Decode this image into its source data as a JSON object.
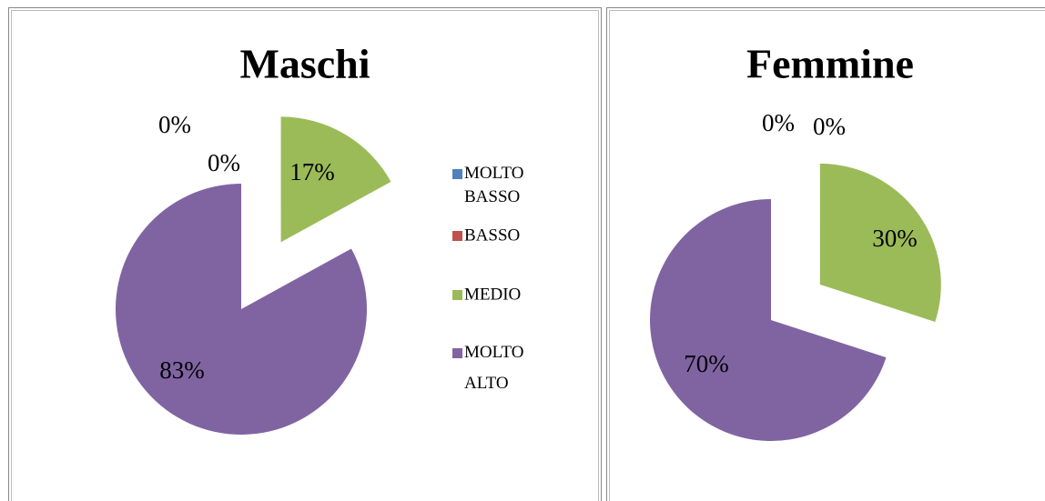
{
  "chart_data": [
    {
      "type": "pie",
      "title": "Maschi",
      "categories": [
        "MOLTO BASSO",
        "BASSO",
        "MEDIO",
        "MOLTO ALTO"
      ],
      "values": [
        0,
        0,
        17,
        83
      ],
      "value_labels": [
        "0%",
        "0%",
        "17%",
        "83%"
      ],
      "colors": [
        "#4f81bd",
        "#c0504d",
        "#9bbb59",
        "#8064a2"
      ],
      "legend": "right"
    },
    {
      "type": "pie",
      "title": "Femmine",
      "categories": [
        "MOLTO BASSO",
        "BASSO",
        "MEDIO",
        "MOLTO ALTO"
      ],
      "values": [
        0,
        0,
        30,
        70
      ],
      "value_labels": [
        "0%",
        "0%",
        "30%",
        "70%"
      ],
      "colors": [
        "#4f81bd",
        "#c0504d",
        "#9bbb59",
        "#8064a2"
      ]
    }
  ]
}
